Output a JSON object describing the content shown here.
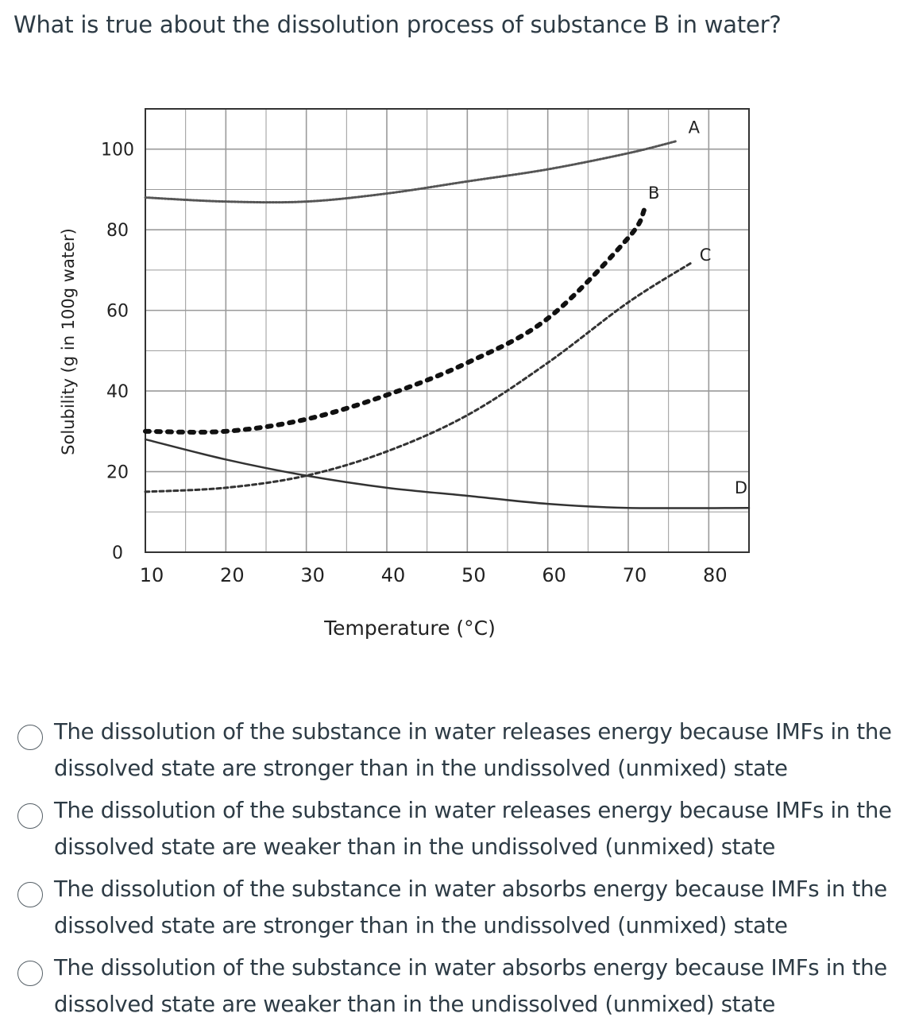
{
  "question": "What is true about the dissolution process of substance B in water?",
  "chart_data": {
    "type": "line",
    "xlabel": "Temperature (°C)",
    "ylabel": "Solubility (g in 100g water)",
    "xlim": [
      10,
      85
    ],
    "ylim": [
      0,
      110
    ],
    "x_ticks": [
      "10",
      "20",
      "30",
      "40",
      "50",
      "60",
      "70",
      "80"
    ],
    "y_ticks": [
      "0",
      "20",
      "40",
      "60",
      "80",
      "100"
    ],
    "grid": true,
    "series": [
      {
        "name": "A",
        "style": "dotted-fine",
        "points": [
          [
            10,
            88
          ],
          [
            20,
            87
          ],
          [
            30,
            87
          ],
          [
            40,
            89
          ],
          [
            50,
            92
          ],
          [
            60,
            95
          ],
          [
            70,
            99
          ],
          [
            76,
            102
          ]
        ]
      },
      {
        "name": "B",
        "style": "dotted-bold",
        "points": [
          [
            10,
            30
          ],
          [
            20,
            30
          ],
          [
            30,
            33
          ],
          [
            40,
            39
          ],
          [
            50,
            47
          ],
          [
            60,
            58
          ],
          [
            70,
            78
          ],
          [
            72,
            85
          ]
        ]
      },
      {
        "name": "C",
        "style": "dashed",
        "points": [
          [
            10,
            15
          ],
          [
            20,
            16
          ],
          [
            30,
            19
          ],
          [
            40,
            25
          ],
          [
            50,
            34
          ],
          [
            60,
            47
          ],
          [
            70,
            62
          ],
          [
            78,
            72
          ]
        ]
      },
      {
        "name": "D",
        "style": "solid",
        "points": [
          [
            10,
            28
          ],
          [
            20,
            23
          ],
          [
            30,
            19
          ],
          [
            40,
            16
          ],
          [
            50,
            14
          ],
          [
            60,
            12
          ],
          [
            70,
            11
          ],
          [
            85,
            11
          ]
        ]
      }
    ]
  },
  "options": [
    {
      "text": "The dissolution of the substance in water releases energy because IMFs in the dissolved state are stronger than in the undissolved (unmixed) state"
    },
    {
      "text": "The dissolution of the substance in water releases energy because IMFs in the dissolved state are weaker than in the undissolved (unmixed) state"
    },
    {
      "text": "The dissolution of the substance in water absorbs energy because IMFs in the dissolved state are stronger than in the undissolved (unmixed) state"
    },
    {
      "text": "The dissolution of the substance in water absorbs energy because IMFs in the dissolved state are weaker than in the undissolved (unmixed) state"
    }
  ]
}
